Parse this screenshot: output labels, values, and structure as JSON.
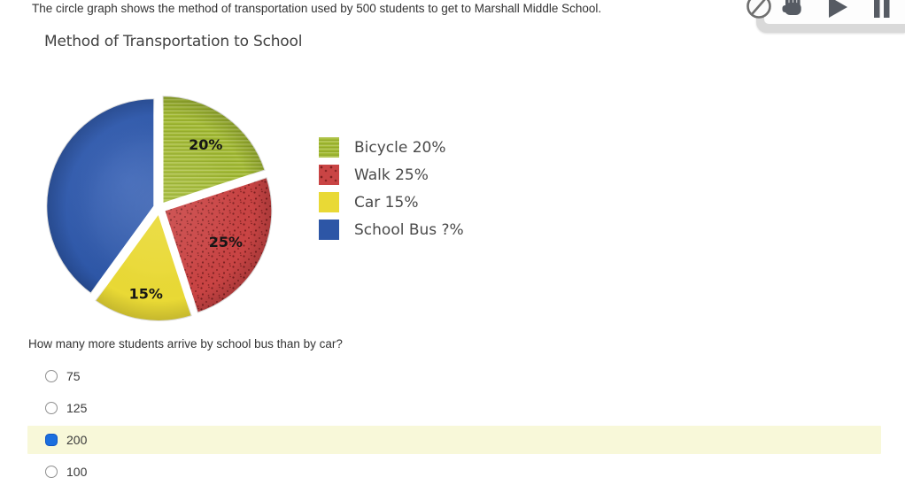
{
  "intro": {
    "text": "The circle graph shows the method of transportation used by 500 students to get to Marshall Middle School."
  },
  "toolbar": {
    "icons": [
      {
        "name": "clock-icon"
      },
      {
        "name": "hand-icon"
      },
      {
        "name": "play-icon"
      },
      {
        "name": "pause-icon"
      }
    ]
  },
  "chart": {
    "title": "Method of Transportation to School",
    "legend": [
      {
        "label": "Bicycle 20%",
        "color": "#a4bc35",
        "texture": "stripes"
      },
      {
        "label": "Walk 25%",
        "color": "#c94444",
        "texture": "dots"
      },
      {
        "label": "Car 15%",
        "color": "#e9d935",
        "texture": "solid"
      },
      {
        "label": "School Bus ?%",
        "color": "#2d56a6",
        "texture": "solid"
      }
    ]
  },
  "chart_data": {
    "type": "pie",
    "title": "Method of Transportation to School",
    "categories": [
      "Bicycle",
      "Walk",
      "Car",
      "School Bus"
    ],
    "values": [
      20,
      25,
      15,
      40
    ],
    "unit": "percent",
    "total_students": 500,
    "slice_labels": [
      "20%",
      "25%",
      "15%",
      ""
    ],
    "colors": [
      "#a4bc35",
      "#c94444",
      "#e9d935",
      "#2d56a6"
    ],
    "legend_entries": [
      "Bicycle 20%",
      "Walk 25%",
      "Car 15%",
      "School Bus ?%"
    ],
    "legend_position": "right",
    "start_angle_deg": 0,
    "direction": "clockwise",
    "exploded": true
  },
  "question": {
    "text": "How many more students arrive by school bus than by car?"
  },
  "options": [
    {
      "label": "75",
      "selected": false
    },
    {
      "label": "125",
      "selected": false
    },
    {
      "label": "200",
      "selected": true
    },
    {
      "label": "100",
      "selected": false
    }
  ],
  "colors": {
    "highlight_row": "#f8f8d9",
    "selected_radio": "#1b6fdf",
    "toolbar_icon": "#565b63"
  }
}
